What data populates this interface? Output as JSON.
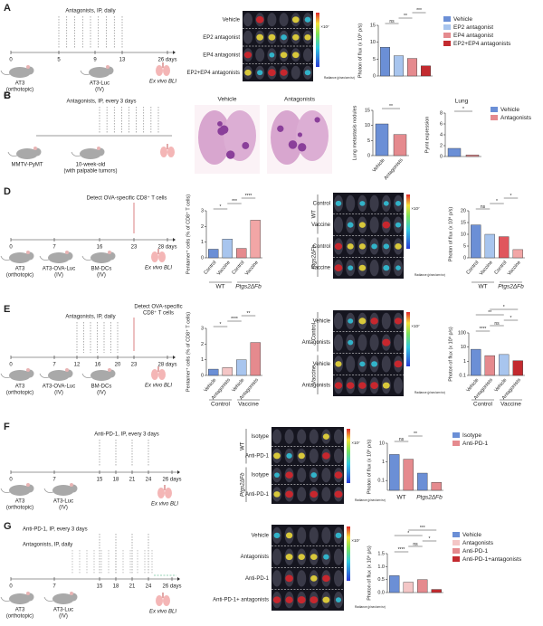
{
  "bli": {
    "unit": "×10⁷",
    "radiance": "Radiance (p/sec/cm²/sr)"
  },
  "A": {
    "label": "A",
    "treatment": "Antagonists, IP, daily",
    "days": [
      0,
      5,
      9,
      13,
      "26 days"
    ],
    "mice": [
      {
        "name": "AT3",
        "route": "(orthotopic)"
      },
      {
        "name": "AT3-Luc",
        "route": "(IV)"
      }
    ],
    "endpoint": "Ex vivo BLI",
    "rows": [
      "Vehicle",
      "EP2 antagonist",
      "EP4 antagonist",
      "EP2+EP4 antagonists"
    ],
    "chart": {
      "type": "bar",
      "ylabel": "Photon of flux (x 10⁸ p/s)",
      "categories": [
        "Vehicle",
        "EP2 antagonist",
        "EP4 antagonist",
        "EP2+EP4 antagonists"
      ],
      "legend": true,
      "values": [
        8.5,
        6,
        5.2,
        3
      ],
      "colors": [
        "#6b8fd6",
        "#a8c5ee",
        "#e58a8e",
        "#c32a2f"
      ],
      "ylim": [
        0,
        15
      ],
      "yticks": [
        0,
        5,
        10,
        15
      ],
      "significance": [
        "ns",
        "**",
        "***"
      ]
    }
  },
  "B": {
    "label": "B",
    "treatment": "Antagonists, IP, every 3 days",
    "mice": [
      {
        "name": "MMTV-PyMT"
      },
      {
        "name": "10-week-old",
        "route": "(with palpable tumors)"
      }
    ],
    "images": [
      "Vehicle",
      "Antagonists"
    ],
    "chart": {
      "type": "bar",
      "ylabel": "Lung metastasis nodules",
      "categories": [
        "Vehicle",
        "Antagonists"
      ],
      "values": [
        10.5,
        7
      ],
      "colors": [
        "#6b8fd6",
        "#e58a8e"
      ],
      "ylim": [
        0,
        15
      ],
      "yticks": [
        0,
        5,
        10,
        15
      ],
      "significance": [
        "**"
      ]
    }
  },
  "C": {
    "label": "C",
    "title": "Lung",
    "chart": {
      "type": "bar",
      "ylabel": "Pymt expression",
      "categories": [
        "Vehicle",
        "Antagonists"
      ],
      "legend": true,
      "values": [
        1.5,
        0.3
      ],
      "colors": [
        "#6b8fd6",
        "#e58a8e"
      ],
      "ylim": [
        0,
        8
      ],
      "yticks": [
        0,
        2,
        4,
        6,
        8
      ],
      "significance": [
        "*"
      ]
    }
  },
  "D": {
    "label": "D",
    "detect": [
      "Detect OVA-specific CD8⁺ T cells"
    ],
    "days": [
      0,
      7,
      16,
      23,
      "28 days"
    ],
    "mice": [
      {
        "name": "AT3",
        "route": "(orthotopic)"
      },
      {
        "name": "AT3-OVA-Luc",
        "route": "(IV)"
      },
      {
        "name": "BM-DCs",
        "route": "(IV)"
      }
    ],
    "endpoint": "Ex vivo BLI",
    "row_groups": [
      {
        "name": "WT",
        "rows": [
          "Control",
          "Vaccine"
        ]
      },
      {
        "name": "Ptgs2ΔFb",
        "rows": [
          "Control",
          "Vaccine"
        ]
      }
    ],
    "charts": [
      {
        "type": "bar",
        "ylabel": "Pentamer⁺ cells (% of CD8⁺ T cells)",
        "categories": [
          "Control",
          "Vaccine",
          "Control",
          "Vaccine"
        ],
        "groups": [
          "WT",
          "Ptgs2ΔFb"
        ],
        "values": [
          0.55,
          1.2,
          0.6,
          2.4
        ],
        "colors": [
          "#6b8fd6",
          "#a8c5ee",
          "#e58a8e",
          "#f2a6a6"
        ],
        "ylim": [
          0,
          3
        ],
        "yticks": [
          0,
          1,
          2,
          3
        ],
        "significance": [
          "*",
          "***",
          "****"
        ]
      },
      {
        "type": "bar",
        "ylabel": "Photon of flux (x 10⁸ p/s)",
        "categories": [
          "Control",
          "Vaccine",
          "Control",
          "Vaccine"
        ],
        "groups": [
          "WT",
          "Ptgs2ΔFb"
        ],
        "values": [
          14,
          10,
          9,
          3.5
        ],
        "colors": [
          "#6b8fd6",
          "#a8c5ee",
          "#e0565d",
          "#f2a6a6"
        ],
        "ylim": [
          0,
          20
        ],
        "yticks": [
          0,
          5,
          10,
          15,
          20
        ],
        "significance": [
          "ns",
          "*",
          "*"
        ]
      }
    ]
  },
  "E": {
    "label": "E",
    "treatment": "Antagonists, IP, daily",
    "detect": [
      "Detect OVA-specific",
      "CD8⁺ T cells"
    ],
    "days": [
      0,
      7,
      12,
      16,
      20,
      23,
      "28 days"
    ],
    "mice": [
      {
        "name": "AT3",
        "route": "(orthotopic)"
      },
      {
        "name": "AT3-OVA-Luc",
        "route": "(IV)"
      },
      {
        "name": "BM-DCs",
        "route": "(IV)"
      }
    ],
    "endpoint": "Ex vivo BLI",
    "row_groups": [
      {
        "name": "Control",
        "rows": [
          "Vehicle",
          "Antagonists"
        ]
      },
      {
        "name": "Vaccine",
        "rows": [
          "Vehicle",
          "Antagonists"
        ]
      }
    ],
    "charts": [
      {
        "type": "bar",
        "ylabel": "Pentamer⁺ cells (% of CD8⁺ T cells)",
        "categories": [
          "Vehicle",
          "Antagonists",
          "Vehicle",
          "Antagonists"
        ],
        "groups": [
          "Control",
          "Vaccine"
        ],
        "values": [
          0.4,
          0.5,
          1.0,
          2.1
        ],
        "colors": [
          "#6b8fd6",
          "#f4c6c6",
          "#a8c5ee",
          "#e58a8e"
        ],
        "ylim": [
          0,
          3
        ],
        "yticks": [
          0,
          1,
          2,
          3
        ],
        "significance": [
          "*",
          "****",
          "**"
        ]
      },
      {
        "type": "bar",
        "ylabel": "Photon of flux (x 10⁸ p/s)",
        "log_scale": true,
        "categories": [
          "Vehicle",
          "Antagonists",
          "Vehicle",
          "Antagonists"
        ],
        "groups": [
          "Control",
          "Vaccine"
        ],
        "values": [
          7,
          2.5,
          3,
          1.1
        ],
        "colors": [
          "#6b8fd6",
          "#e58a8e",
          "#a8c5ee",
          "#c32a2f"
        ],
        "ylim": [
          0.1,
          100
        ],
        "yticks": [
          0.1,
          1,
          10,
          100
        ],
        "significance": [
          "****",
          "ns",
          "*",
          "**",
          "*"
        ]
      }
    ]
  },
  "F": {
    "label": "F",
    "treatment": "Anti-PD-1, IP, every 3 days",
    "days": [
      0,
      7,
      15,
      18,
      21,
      24,
      "26 days"
    ],
    "mice": [
      {
        "name": "AT3",
        "route": "(orthotopic)"
      },
      {
        "name": "AT3-Luc",
        "route": "(IV)"
      }
    ],
    "endpoint": "Ex vivo BLI",
    "row_groups": [
      {
        "name": "WT",
        "rows": [
          "Isotype",
          "Anti-PD-1"
        ]
      },
      {
        "name": "Ptgs2ΔFb",
        "rows": [
          "Isotype",
          "Anti-PD-1"
        ]
      }
    ],
    "chart": {
      "type": "bar",
      "ylabel": "Photon of flux (x 10⁸ p/s)",
      "log_scale": true,
      "ylim": [
        0.03,
        10
      ],
      "yticks": [
        0.1,
        1,
        10
      ],
      "categories": [
        "WT",
        "Ptgs2ΔFb"
      ],
      "series": [
        {
          "name": "Isotype",
          "color": "#6b8fd6",
          "values": [
            2.5,
            0.25
          ]
        },
        {
          "name": "Anti-PD-1",
          "color": "#e58a8e",
          "values": [
            1.4,
            0.08
          ]
        }
      ],
      "significance": [
        "ns",
        "**"
      ]
    }
  },
  "G": {
    "label": "G",
    "treatments": [
      "Anti-PD-1, IP, every 3 days",
      "Antagonists, IP, daily"
    ],
    "days": [
      0,
      7,
      15,
      18,
      21,
      24,
      "26 days"
    ],
    "mice": [
      {
        "name": "AT3",
        "route": "(orthotopic)"
      },
      {
        "name": "AT3-Luc",
        "route": "(IV)"
      }
    ],
    "endpoint": "Ex vivo BLI",
    "rows": [
      "Vehicle",
      "Antagonists",
      "Anti-PD-1",
      "Anti-PD-1+ antagonists"
    ],
    "chart": {
      "type": "bar",
      "ylabel": "Photon of flux (x 10⁸ p/s)",
      "categories": [
        "Vehicle",
        "Antagonists",
        "Anti-PD-1",
        "Anti-PD-1+antagonists"
      ],
      "legend": true,
      "values": [
        0.65,
        0.4,
        0.5,
        0.12
      ],
      "colors": [
        "#6b8fd6",
        "#f4c6c6",
        "#e58a8e",
        "#c32a2f"
      ],
      "ylim": [
        0,
        1.5
      ],
      "yticks": [
        {
          "value": 0,
          "label": "0.0"
        },
        0.5,
        {
          "value": 1,
          "label": "1.0"
        },
        1.5
      ],
      "significance": [
        "****",
        "ns",
        "*",
        "*",
        "***"
      ]
    }
  }
}
